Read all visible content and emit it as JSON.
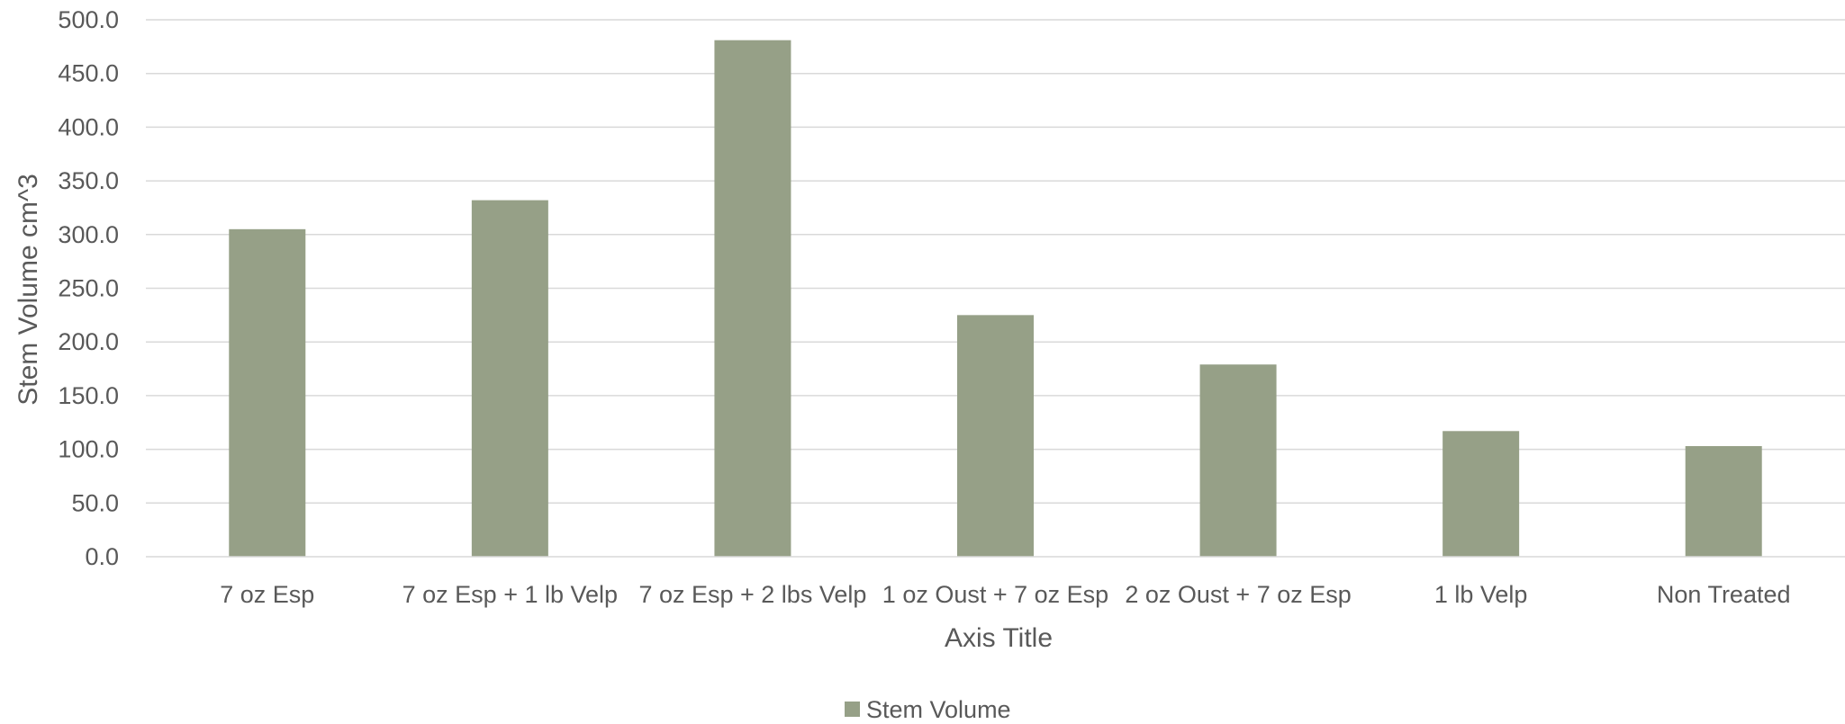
{
  "chart_data": {
    "type": "bar",
    "title": "",
    "xlabel": "Axis Title",
    "ylabel": "Stem Volume cm^3",
    "ylim": [
      0,
      500
    ],
    "ytick_step": 50,
    "ytick_labels": [
      "0.0",
      "50.0",
      "100.0",
      "150.0",
      "200.0",
      "250.0",
      "300.0",
      "350.0",
      "400.0",
      "450.0",
      "500.0"
    ],
    "grid": true,
    "legend_position": "bottom",
    "categories": [
      "7 oz Esp",
      "7 oz Esp + 1 lb Velp",
      "7 oz Esp + 2 lbs Velp",
      "1 oz Oust + 7 oz Esp",
      "2 oz Oust + 7 oz Esp",
      "1 lb Velp",
      "Non Treated"
    ],
    "series": [
      {
        "name": "Stem Volume",
        "color": "#96a087",
        "values": [
          305,
          332,
          481,
          225,
          179,
          117,
          103
        ]
      }
    ]
  }
}
